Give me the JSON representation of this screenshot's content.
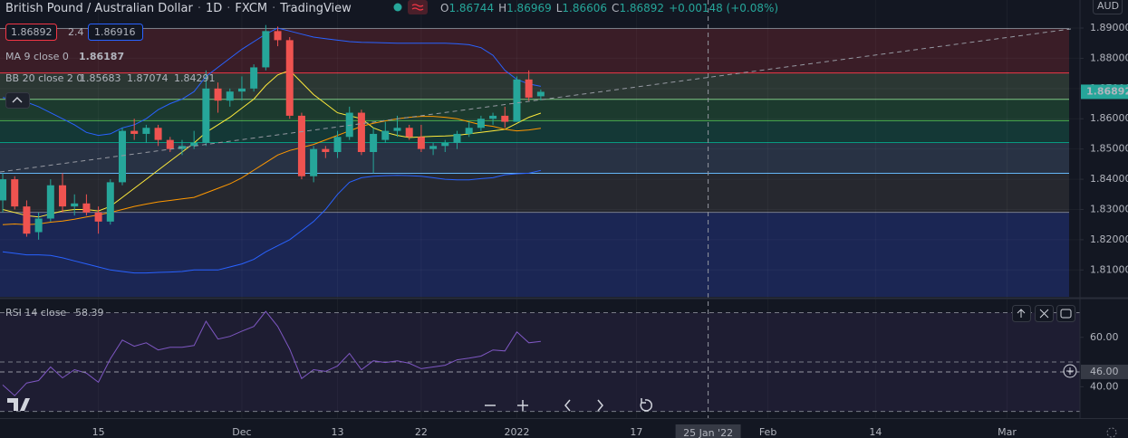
{
  "chart_data": [
    {
      "type": "candlestick",
      "symbol": "British Pound / Australian Dollar",
      "separator": "·",
      "interval": "1D",
      "exchange": "FXCM",
      "source": "TradingView",
      "ohlc_labels": [
        "O",
        "H",
        "L",
        "C"
      ],
      "change_label": "+0.00148 (+0.08%)",
      "spread": 2.4,
      "ask": 1.86916,
      "currency": "AUD",
      "up_color": "#26a69a",
      "down_color": "#ef5350",
      "grid": true,
      "open": [
        1.833,
        1.84,
        1.831,
        1.8225,
        1.827,
        1.838,
        1.831,
        1.832,
        1.829,
        1.826,
        1.839,
        1.856,
        1.855,
        1.857,
        1.853,
        1.85,
        1.851,
        1.852,
        1.87,
        1.866,
        1.869,
        1.87,
        1.877,
        1.889,
        1.886,
        1.861,
        1.841,
        1.85,
        1.849,
        1.854,
        1.862,
        1.849,
        1.853,
        1.856,
        1.857,
        1.854,
        1.85,
        1.851,
        1.852,
        1.855,
        1.857,
        1.86,
        1.861,
        1.859,
        1.873,
        1.86744
      ],
      "high": [
        1.842,
        1.841,
        1.833,
        1.829,
        1.84,
        1.842,
        1.835,
        1.835,
        1.831,
        1.84,
        1.857,
        1.86,
        1.858,
        1.858,
        1.854,
        1.853,
        1.856,
        1.876,
        1.872,
        1.87,
        1.874,
        1.878,
        1.891,
        1.8905,
        1.887,
        1.862,
        1.851,
        1.851,
        1.856,
        1.864,
        1.863,
        1.857,
        1.859,
        1.861,
        1.858,
        1.858,
        1.852,
        1.853,
        1.856,
        1.859,
        1.861,
        1.862,
        1.864,
        1.874,
        1.876,
        1.86969
      ],
      "low": [
        1.829,
        1.83,
        1.821,
        1.82,
        1.826,
        1.829,
        1.828,
        1.828,
        1.822,
        1.825,
        1.838,
        1.853,
        1.852,
        1.851,
        1.849,
        1.848,
        1.85,
        1.851,
        1.862,
        1.864,
        1.866,
        1.869,
        1.876,
        1.884,
        1.86,
        1.84,
        1.839,
        1.847,
        1.847,
        1.853,
        1.848,
        1.842,
        1.852,
        1.854,
        1.853,
        1.849,
        1.848,
        1.849,
        1.85,
        1.854,
        1.856,
        1.858,
        1.857,
        1.859,
        1.866,
        1.86606
      ],
      "close": [
        1.84,
        1.831,
        1.822,
        1.827,
        1.838,
        1.831,
        1.832,
        1.829,
        1.826,
        1.839,
        1.856,
        1.855,
        1.857,
        1.853,
        1.85,
        1.851,
        1.852,
        1.87,
        1.866,
        1.869,
        1.87,
        1.877,
        1.889,
        1.886,
        1.861,
        1.841,
        1.85,
        1.849,
        1.854,
        1.862,
        1.849,
        1.855,
        1.856,
        1.857,
        1.854,
        1.85,
        1.851,
        1.852,
        1.855,
        1.857,
        1.86,
        1.861,
        1.859,
        1.873,
        1.867,
        1.86892
      ],
      "indicators": [
        {
          "name": "MA 9 close 0",
          "series": [
            {
              "color": "#ffeb3b",
              "values": [
                1.83,
                1.829,
                1.828,
                1.8275,
                1.8285,
                1.8295,
                1.83,
                1.83,
                1.8295,
                1.831,
                1.834,
                1.837,
                1.84,
                1.843,
                1.846,
                1.849,
                1.852,
                1.8555,
                1.858,
                1.8605,
                1.8635,
                1.8665,
                1.871,
                1.8745,
                1.876,
                1.872,
                1.868,
                1.865,
                1.862,
                1.861,
                1.86,
                1.857,
                1.8555,
                1.8545,
                1.8538,
                1.854,
                1.8542,
                1.8543,
                1.8545,
                1.855,
                1.8555,
                1.856,
                1.8565,
                1.8585,
                1.8605,
                1.86187
              ]
            }
          ]
        },
        {
          "name": "BB 20 close 2 0",
          "series": [
            {
              "color": "#ff9800",
              "values": [
                1.825,
                1.8252,
                1.825,
                1.8252,
                1.8258,
                1.8262,
                1.8268,
                1.8275,
                1.8282,
                1.829,
                1.83,
                1.831,
                1.8318,
                1.8325,
                1.833,
                1.8335,
                1.834,
                1.8355,
                1.837,
                1.8385,
                1.8405,
                1.843,
                1.8455,
                1.848,
                1.8495,
                1.8505,
                1.8515,
                1.853,
                1.8545,
                1.856,
                1.8575,
                1.8585,
                1.8593,
                1.86,
                1.8605,
                1.8608,
                1.8608,
                1.8605,
                1.86,
                1.859,
                1.858,
                1.8575,
                1.8565,
                1.856,
                1.8563,
                1.85683
              ]
            },
            {
              "color": "#2962ff",
              "values": [
                1.867,
                1.8665,
                1.8655,
                1.864,
                1.862,
                1.86,
                1.858,
                1.8555,
                1.8545,
                1.855,
                1.857,
                1.858,
                1.86,
                1.863,
                1.865,
                1.8665,
                1.869,
                1.874,
                1.877,
                1.88,
                1.883,
                1.8855,
                1.888,
                1.89,
                1.889,
                1.888,
                1.887,
                1.8865,
                1.886,
                1.8855,
                1.8853,
                1.8852,
                1.8851,
                1.885,
                1.885,
                1.885,
                1.885,
                1.885,
                1.8848,
                1.8845,
                1.8835,
                1.881,
                1.876,
                1.873,
                1.8715,
                1.87074
              ]
            },
            {
              "color": "#2962ff",
              "values": [
                1.816,
                1.8155,
                1.815,
                1.815,
                1.8148,
                1.814,
                1.813,
                1.812,
                1.811,
                1.81,
                1.8095,
                1.809,
                1.809,
                1.8092,
                1.8093,
                1.8095,
                1.81,
                1.81,
                1.81,
                1.811,
                1.812,
                1.8135,
                1.816,
                1.818,
                1.82,
                1.823,
                1.826,
                1.83,
                1.835,
                1.839,
                1.8405,
                1.841,
                1.8412,
                1.8413,
                1.8412,
                1.841,
                1.8405,
                1.84,
                1.8398,
                1.8398,
                1.8402,
                1.8405,
                1.8415,
                1.8418,
                1.842,
                1.84291
              ]
            }
          ]
        }
      ],
      "fib": {
        "levels": [
          1.89,
          1.8753,
          1.8666,
          1.8595,
          1.8523,
          1.8421,
          1.8292
        ],
        "line_colors": [
          "#787b86",
          "#f23645",
          "#81c784",
          "#4caf50",
          "#089981",
          "#64b5f6",
          "#787b86"
        ],
        "fill_colors": [
          "#3a1d27",
          "#2b3733",
          "#1c3a2e",
          "#143836",
          "#283244",
          "#26282f",
          "#1b2654"
        ]
      },
      "xlim": [
        -0.23,
        90.1
      ],
      "xticks": [
        {
          "value": 8,
          "label": "15"
        },
        {
          "value": 20,
          "label": "Dec"
        },
        {
          "value": 28,
          "label": "13"
        },
        {
          "value": 35,
          "label": "22"
        },
        {
          "value": 43,
          "label": "2022"
        },
        {
          "value": 53,
          "label": "17"
        },
        {
          "value": 64,
          "label": "Feb"
        },
        {
          "value": 73,
          "label": "14"
        },
        {
          "value": 84,
          "label": "Mar"
        }
      ],
      "crosshair": {
        "x": 59,
        "label": "25 Jan '22"
      },
      "ylim": [
        1.80111,
        1.89928
      ],
      "yticks": [
        {
          "value": 1.81,
          "label": "1.81000"
        },
        {
          "value": 1.82,
          "label": "1.82000"
        },
        {
          "value": 1.83,
          "label": "1.83000"
        },
        {
          "value": 1.84,
          "label": "1.84000"
        },
        {
          "value": 1.85,
          "label": "1.85000"
        },
        {
          "value": 1.86,
          "label": "1.86000"
        },
        {
          "value": 1.87,
          "label": "1.87000"
        },
        {
          "value": 1.88,
          "label": "1.88000"
        },
        {
          "value": 1.89,
          "label": "1.89000"
        }
      ]
    },
    {
      "type": "line",
      "name": "RSI 14 close",
      "series": [
        {
          "color": "#7e57c2",
          "values": [
            40.7,
            36.4,
            41.5,
            42.5,
            48.0,
            43.6,
            46.9,
            45.5,
            41.8,
            51.3,
            58.9,
            56.4,
            57.8,
            54.9,
            56.0,
            56.0,
            56.7,
            66.5,
            59.3,
            60.4,
            62.5,
            64.4,
            70.5,
            64.4,
            55.3,
            43.3,
            46.9,
            46.2,
            48.4,
            53.5,
            46.9,
            50.5,
            49.8,
            50.5,
            49.5,
            47.3,
            48.0,
            48.7,
            50.9,
            51.6,
            52.4,
            54.9,
            54.5,
            62.2,
            57.8,
            58.39
          ]
        }
      ],
      "bands": [
        70,
        50,
        30
      ],
      "crosshair": {
        "value": 46,
        "label": "46.00"
      },
      "ylim": [
        27.3,
        75.3
      ],
      "yticks": [
        {
          "value": 60,
          "label": "60.00"
        },
        {
          "value": 40,
          "label": "40.00"
        }
      ]
    }
  ]
}
